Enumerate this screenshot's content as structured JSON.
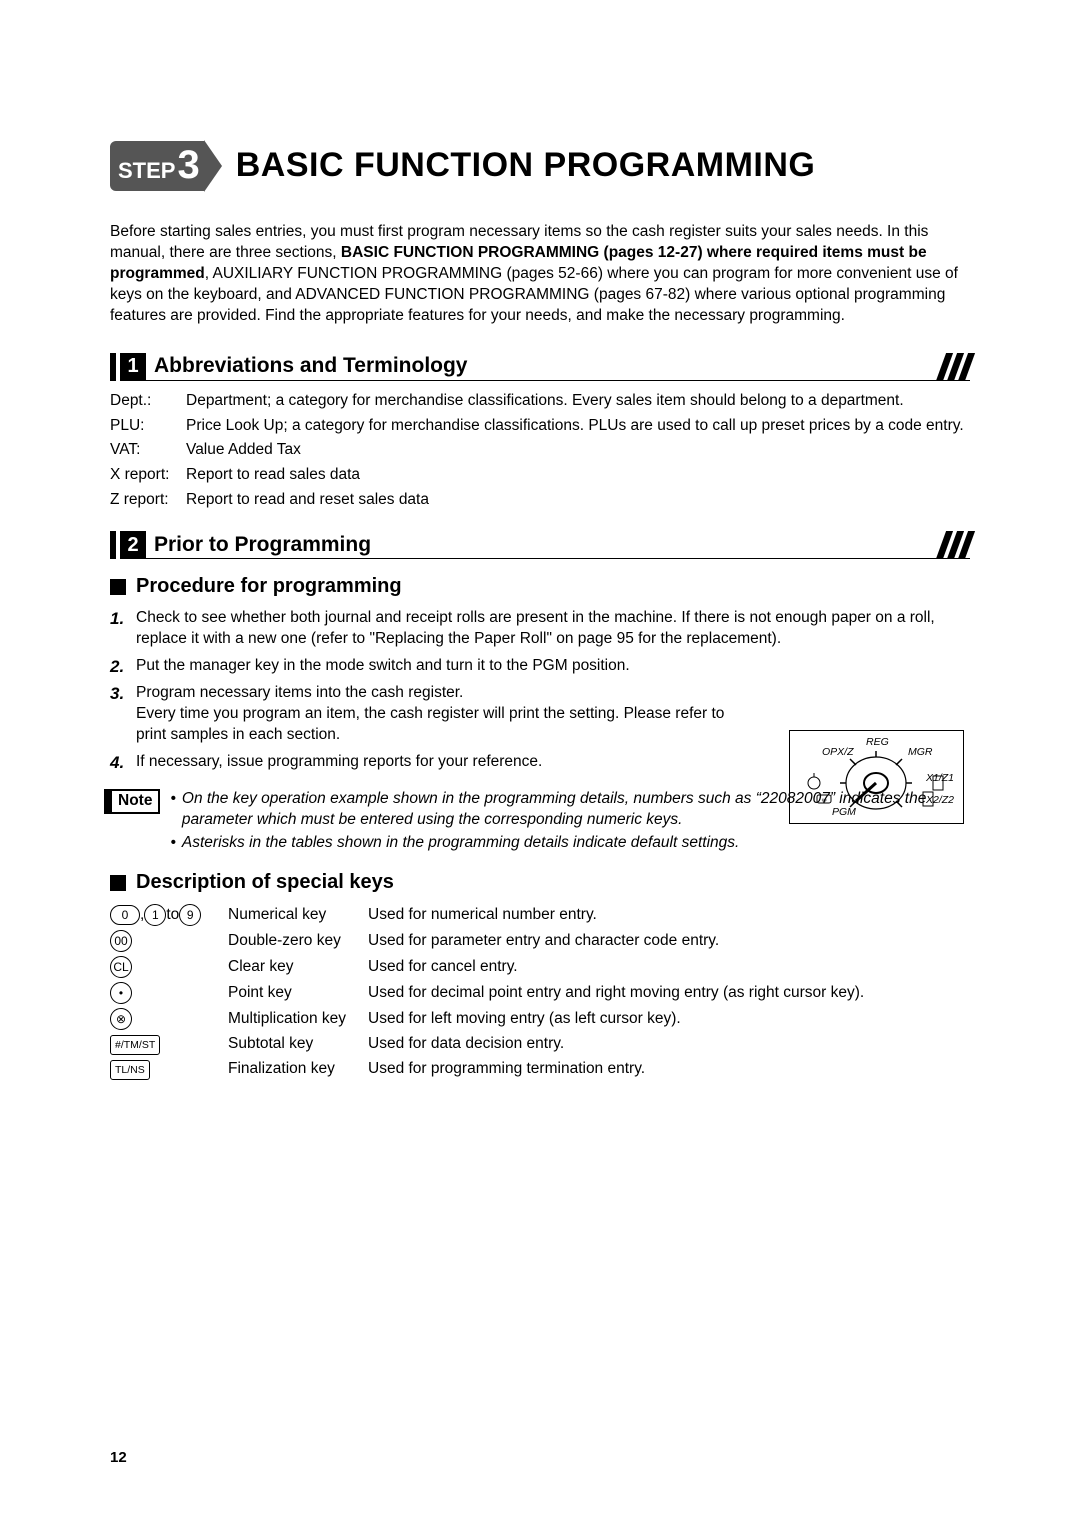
{
  "title": {
    "step_label": "STEP",
    "step_num": "3",
    "main": "BASIC FUNCTION PROGRAMMING"
  },
  "intro": "Before starting sales entries, you must first program necessary items so the cash register suits your sales needs.  In this manual, there are three sections, <b>BASIC FUNCTION PROGRAMMING (pages 12-27) where required items must be programmed</b>, AUXILIARY FUNCTION PROGRAMMING (pages 52-66) where you can program for more convenient use of keys on the keyboard, and ADVANCED FUNCTION PROGRAMMING (pages 67-82) where various optional programming features are provided.  Find the appropriate features for your needs, and make the necessary programming.",
  "section1": {
    "num": "1",
    "title": "Abbreviations and Terminology",
    "defs": [
      {
        "term": "Dept.:",
        "body": "Department; a category for merchandise classifications.  Every sales item should belong to a department."
      },
      {
        "term": "PLU:",
        "body": "Price Look Up; a category for merchandise classifications.  PLUs are used to call up preset prices by a code entry."
      },
      {
        "term": "VAT:",
        "body": "Value Added Tax"
      },
      {
        "term": "X report:",
        "body": "Report to read sales data"
      },
      {
        "term": "Z report:",
        "body": "Report to read and reset sales data"
      }
    ]
  },
  "section2": {
    "num": "2",
    "title": "Prior to Programming",
    "sub1": "Procedure for programming",
    "steps": [
      "Check to see whether both journal and receipt rolls are present in the machine.  If there is not enough paper on a roll, replace it with a new one (refer to \"Replacing the Paper Roll\" on page 95 for the replacement).",
      "Put the manager key in the mode switch and turn it to the PGM position.",
      "Program necessary items into the cash register.\nEvery time you program an item, the cash register will print the setting.  Please refer to print samples in each section.",
      "If necessary, issue programming reports for your reference."
    ],
    "note_label": "Note",
    "notes": [
      "On the key operation example shown in the programming details, numbers such as “22082007” indicates the parameter which must be entered using the corresponding numeric keys.",
      "Asterisks in the tables shown in the programming details indicate default settings."
    ],
    "sub2": "Description of special keys",
    "keys": [
      {
        "cap_html": "<span class='kcap'>0</span> , <span class='kcap round'>1</span> to <span class='kcap round'>9</span>",
        "name": "Numerical key",
        "desc": "Used for numerical number entry."
      },
      {
        "cap_html": "<span class='kcap round'>00</span>",
        "name": "Double-zero key",
        "desc": "Used for parameter entry and character code entry."
      },
      {
        "cap_html": "<span class='kcap round'>CL</span>",
        "name": "Clear key",
        "desc": "Used for cancel entry."
      },
      {
        "cap_html": "<span class='kcap round'>•</span>",
        "name": "Point key",
        "desc": "Used for decimal point entry and right moving entry (as right cursor key)."
      },
      {
        "cap_html": "<span class='kcap round'>⊗</span>",
        "name": "Multiplication key",
        "desc": "Used for left moving entry (as left cursor key)."
      },
      {
        "cap_html": "<span class='kcap rect'>#/TM/ST</span>",
        "name": "Subtotal key",
        "desc": "Used for data decision entry."
      },
      {
        "cap_html": "<span class='kcap rect'>TL/NS</span>",
        "name": "Finalization key",
        "desc": "Used for programming termination entry."
      }
    ]
  },
  "dial": {
    "labels": {
      "top": "REG",
      "tl": "OPX/Z",
      "tr": "MGR",
      "r1": "X1/Z1",
      "r2": "X2/Z2",
      "bl": "PGM"
    }
  },
  "page_number": "12"
}
